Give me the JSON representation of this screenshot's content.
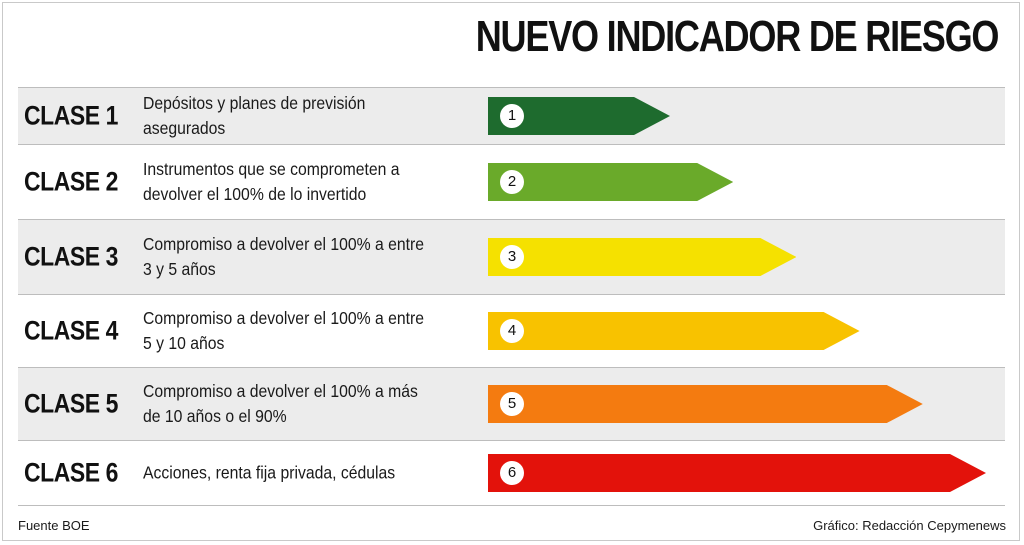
{
  "title": "NUEVO INDICADOR DE RIESGO",
  "rows": [
    {
      "class_label": "CLASE 1",
      "description": "Depósitos y planes de previsión asegurados",
      "level": "1",
      "color": "#1e6b2e",
      "risk_rank": 1
    },
    {
      "class_label": "CLASE 2",
      "description": "Instrumentos que se comprometen a\ndevolver el 100% de lo invertido",
      "level": "2",
      "color": "#6aaa2a",
      "risk_rank": 2
    },
    {
      "class_label": "CLASE 3",
      "description": "Compromiso a devolver el 100% a entre\n3 y 5 años",
      "level": "3",
      "color": "#f5e100",
      "risk_rank": 3
    },
    {
      "class_label": "CLASE 4",
      "description": "Compromiso a devolver el 100% a entre\n5 y 10 años",
      "level": "4",
      "color": "#f8c200",
      "risk_rank": 4
    },
    {
      "class_label": "CLASE 5",
      "description": "Compromiso a devolver el 100% a más\nde 10 años o el 90%",
      "level": "5",
      "color": "#f47b10",
      "risk_rank": 5
    },
    {
      "class_label": "CLASE 6",
      "description": "Acciones, renta fija privada, cédulas",
      "level": "6",
      "color": "#e3120b",
      "risk_rank": 6
    }
  ],
  "footer": {
    "source": "Fuente BOE",
    "credit": "Gráfico: Redacción Cepymenews"
  }
}
